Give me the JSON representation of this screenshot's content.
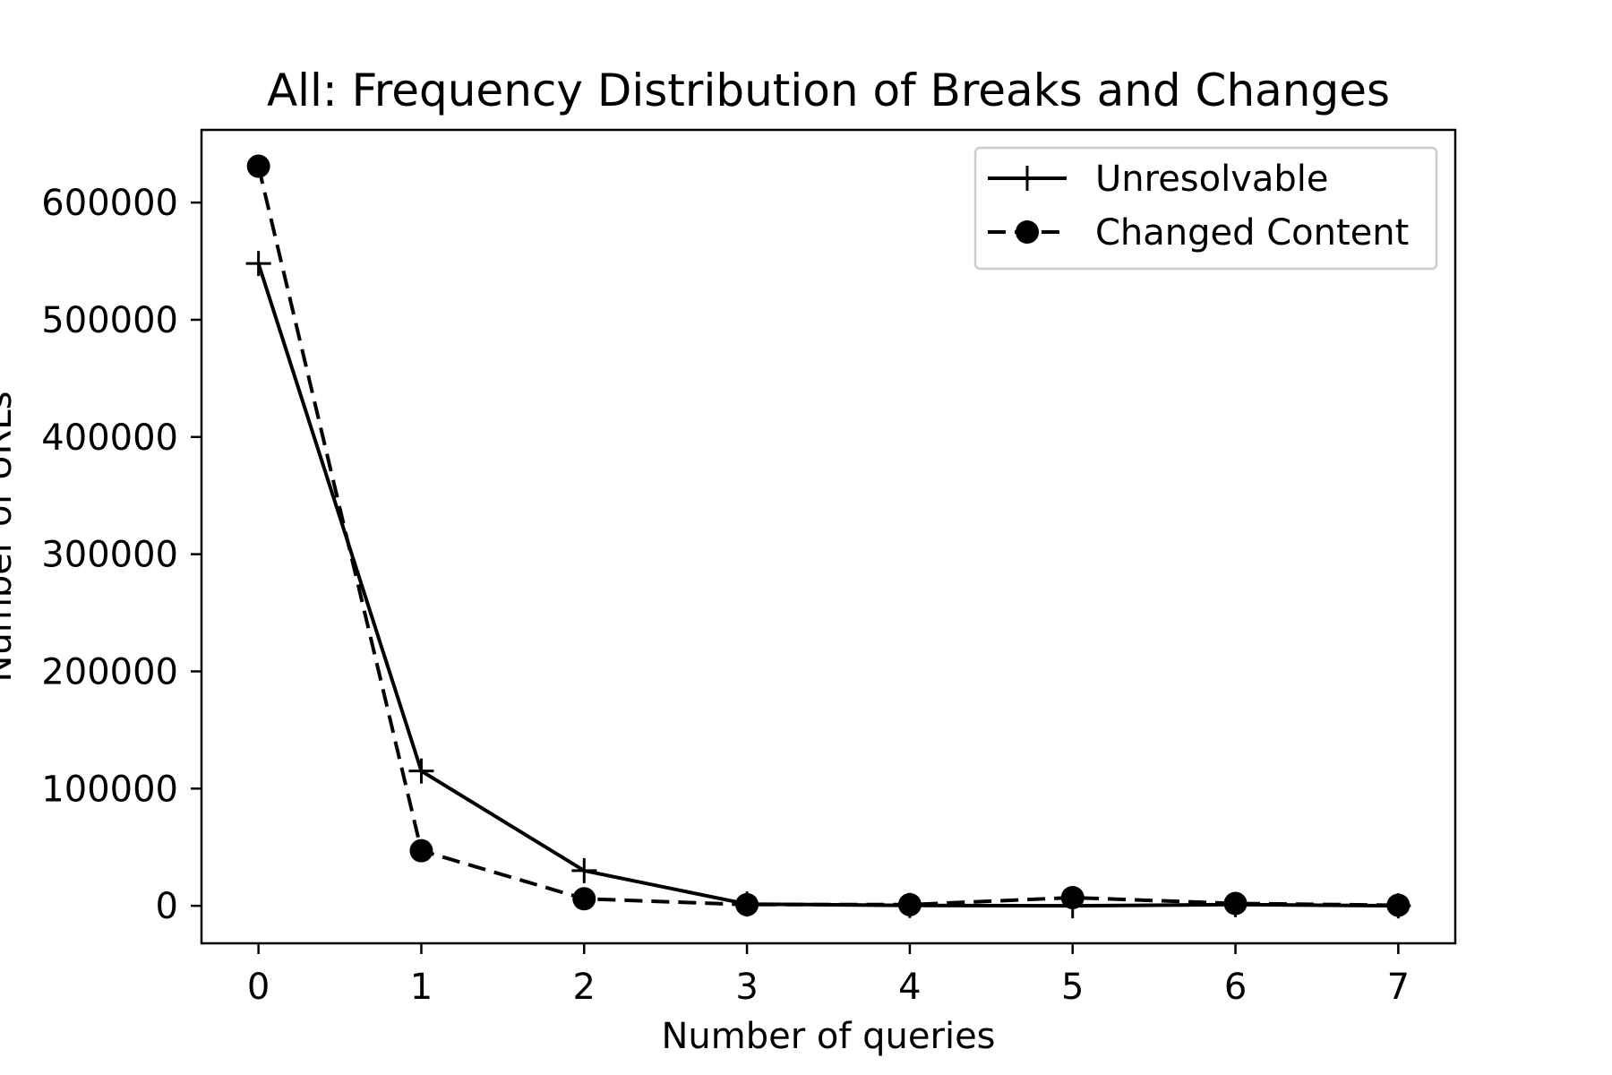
{
  "chart_data": {
    "type": "line",
    "title": "All: Frequency Distribution of Breaks and Changes",
    "xlabel": "Number of queries",
    "ylabel": "Number of URLs",
    "x": [
      0,
      1,
      2,
      3,
      4,
      5,
      6,
      7
    ],
    "xlim": [
      -0.35,
      7.35
    ],
    "ylim": [
      -32000,
      662000
    ],
    "x_ticks": [
      0,
      1,
      2,
      3,
      4,
      5,
      6,
      7
    ],
    "y_ticks": [
      0,
      100000,
      200000,
      300000,
      400000,
      500000,
      600000
    ],
    "grid": false,
    "legend_position": "top-right",
    "series": [
      {
        "name": "Unresolvable",
        "values": [
          548000,
          115000,
          30000,
          1500,
          300,
          0,
          1000,
          0
        ],
        "line_style": "solid",
        "marker": "plus",
        "color": "#000000"
      },
      {
        "name": "Changed Content",
        "values": [
          631000,
          47000,
          6000,
          1000,
          1000,
          7000,
          2000,
          500
        ],
        "line_style": "dashed",
        "marker": "circle",
        "color": "#000000"
      }
    ]
  }
}
